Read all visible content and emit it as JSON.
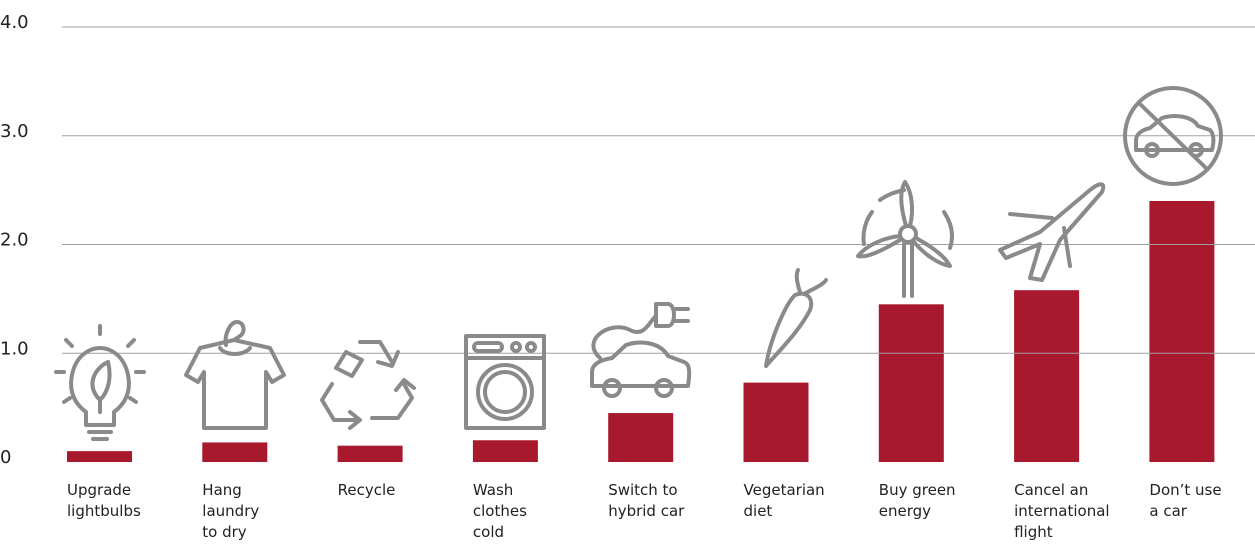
{
  "chart_data": {
    "type": "bar",
    "categories": [
      "Upgrade lightbulbs",
      "Hang laundry to dry",
      "Recycle",
      "Wash clothes cold",
      "Switch to hybrid car",
      "Vegetarian diet",
      "Buy green energy",
      "Cancel an international flight",
      "Don’t use a car"
    ],
    "values": [
      0.1,
      0.18,
      0.15,
      0.2,
      0.45,
      0.73,
      1.45,
      1.58,
      2.4
    ],
    "color": "#a8192e",
    "ylim": [
      0,
      4
    ],
    "yticks": [
      0,
      {
        "value": 1,
        "label": "1.0"
      },
      {
        "value": 2,
        "label": "2.0"
      },
      {
        "value": 3,
        "label": "3.0"
      },
      {
        "value": 4,
        "label": "4.0"
      }
    ],
    "grid": true
  }
}
